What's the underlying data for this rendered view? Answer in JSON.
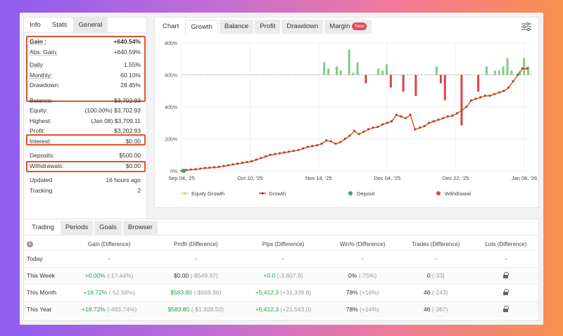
{
  "left": {
    "tabs": [
      "Info",
      "Stats",
      "General"
    ],
    "rows": [
      {
        "label": "Gain :",
        "value": "+640.54%"
      },
      {
        "label": "Abs. Gain:",
        "value": "+640.59%"
      },
      {
        "label": "Daily",
        "value": "1.55%"
      },
      {
        "label": "Monthly:",
        "value": "60.10%"
      },
      {
        "label": "Drawdown:",
        "value": "28.45%"
      },
      {
        "label": "Balance:",
        "value": "$3,702.93"
      },
      {
        "label": "Equity:",
        "value": "(100.00%) $3,702.93"
      },
      {
        "label": "Highest:",
        "value": "(Jan 08) $3,709.11"
      },
      {
        "label": "Profit:",
        "value": "$3,202.93"
      },
      {
        "label": "Interest:",
        "value": "$0.00"
      },
      {
        "label": "Deposits:",
        "value": "$500.00"
      },
      {
        "label": "Withdrawals:",
        "value": "$0.00"
      },
      {
        "label": "Updated",
        "value": "16 hours ago"
      },
      {
        "label": "Tracking",
        "value": "2"
      }
    ]
  },
  "right": {
    "tabs": [
      "Chart",
      "Growth",
      "Balance",
      "Profit",
      "Drawdown",
      "Margin"
    ],
    "margin_badge": "New",
    "settings_icon": "sliders-icon"
  },
  "chart_data": {
    "type": "line",
    "y_ticks": [
      "800%",
      "600%",
      "400%",
      "200%",
      "0%"
    ],
    "x_ticks": [
      "Sep 04, '25",
      "Oct 10, '25",
      "Nov 14, '25",
      "Dec 04, '25",
      "Dec 22, '25",
      "Jan 08, '26"
    ],
    "ylim": [
      0,
      800
    ],
    "legend": [
      "Equity Growth",
      "Growth",
      "Deposit",
      "Withdrawal"
    ],
    "colors": {
      "equity": "#f2c94c",
      "growth": "#c0392b",
      "deposit": "#27ae60",
      "withdrawal": "#d64545",
      "bar_pos": "#7dcc86",
      "bar_neg": "#d64545"
    },
    "growth": [
      0,
      5,
      8,
      10,
      14,
      18,
      20,
      22,
      25,
      30,
      35,
      40,
      45,
      50,
      55,
      60,
      70,
      80,
      90,
      100,
      105,
      110,
      115,
      120,
      125,
      130,
      140,
      150,
      155,
      160,
      170,
      190,
      185,
      170,
      180,
      200,
      220,
      250,
      230,
      245,
      260,
      270,
      275,
      290,
      300,
      310,
      350,
      340,
      330,
      350,
      260,
      270,
      280,
      300,
      310,
      320,
      330,
      340,
      345,
      360,
      380,
      400,
      440,
      450,
      460,
      470,
      470,
      480,
      490,
      500,
      520,
      560,
      600,
      640,
      640
    ],
    "bars": [
      0,
      0,
      0,
      0,
      0,
      0,
      0,
      0,
      0,
      0,
      0,
      0,
      0,
      0,
      0,
      0,
      0,
      0,
      0,
      0,
      0,
      0,
      0,
      0,
      0,
      0,
      0,
      0,
      0,
      0,
      0,
      0,
      0,
      0,
      30,
      15,
      0,
      20,
      10,
      0,
      60,
      5,
      30,
      0,
      -20,
      0,
      0,
      15,
      10,
      25,
      -30,
      0,
      0,
      -40,
      0,
      0,
      -50,
      0,
      0,
      0,
      0,
      20,
      -20,
      -60,
      0,
      0,
      0,
      -120,
      0,
      0,
      0,
      -40,
      0,
      20,
      0,
      10,
      10,
      20,
      40,
      10,
      0,
      10,
      40,
      20
    ]
  },
  "bottom": {
    "tabs": [
      "Trading",
      "Periods",
      "Goals",
      "Browser"
    ],
    "headers": [
      "Gain (Difference)",
      "Profit (Difference)",
      "Pips (Difference)",
      "Win% (Difference)",
      "Trades (Difference)",
      "Lots (Difference)"
    ],
    "rows": [
      {
        "label": "Today",
        "gain": "-",
        "gain_d": "",
        "profit": "-",
        "profit_d": "",
        "pips": "-",
        "pips_d": "",
        "win": "-",
        "win_d": "",
        "trades": "-",
        "trades_d": "",
        "lots": "-"
      },
      {
        "label": "This Week",
        "gain": "+0.00%",
        "gain_d": "(-17.44%)",
        "profit": "$0.00",
        "profit_d": "(-$549.97)",
        "pips": "+0.0",
        "pips_d": "(-3,607.9)",
        "win": "0%",
        "win_d": "(-75%)",
        "trades": "0",
        "trades_d": "(-33)",
        "lots": "lock"
      },
      {
        "label": "This Month",
        "gain": "+18.72%",
        "gain_d": "(-52.58%)",
        "profit": "$583.80",
        "profit_d": "(-$669.96)",
        "pips": "+5,412.3",
        "pips_d": "(+31,339.8)",
        "win": "78%",
        "win_d": "(+16%)",
        "trades": "46",
        "trades_d": "(-243)",
        "lots": "lock"
      },
      {
        "label": "This Year",
        "gain": "+18.72%",
        "gain_d": "(-483.74%)",
        "profit": "$583.80",
        "profit_d": "(-$1,928.50)",
        "pips": "+5,412.3",
        "pips_d": "(+21,563.0)",
        "win": "78%",
        "win_d": "(+14%)",
        "trades": "46",
        "trades_d": "(-367)",
        "lots": "lock"
      }
    ]
  }
}
